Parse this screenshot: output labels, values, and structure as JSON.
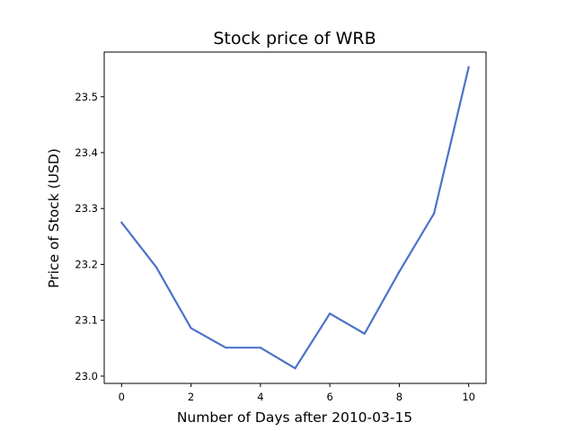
{
  "chart_data": {
    "type": "line",
    "title": "Stock price of WRB",
    "xlabel": "Number of Days after 2010-03-15",
    "ylabel": "Price of Stock (USD)",
    "x": [
      0,
      1,
      2,
      3,
      4,
      5,
      6,
      7,
      8,
      9,
      10
    ],
    "series": [
      {
        "values": [
          23.275,
          23.195,
          23.086,
          23.051,
          23.051,
          23.014,
          23.112,
          23.076,
          23.187,
          23.291,
          23.553
        ],
        "color": "#4c72c9"
      }
    ],
    "xticks": [
      0,
      2,
      4,
      6,
      8,
      10
    ],
    "xtick_labels": [
      "0",
      "2",
      "4",
      "6",
      "8",
      "10"
    ],
    "yticks": [
      23.0,
      23.1,
      23.2,
      23.3,
      23.4,
      23.5
    ],
    "ytick_labels": [
      "23.0",
      "23.1",
      "23.2",
      "23.3",
      "23.4",
      "23.5"
    ],
    "xlim": [
      -0.5,
      10.5
    ],
    "ylim": [
      22.987,
      23.58
    ],
    "grid": false,
    "legend": "none"
  }
}
